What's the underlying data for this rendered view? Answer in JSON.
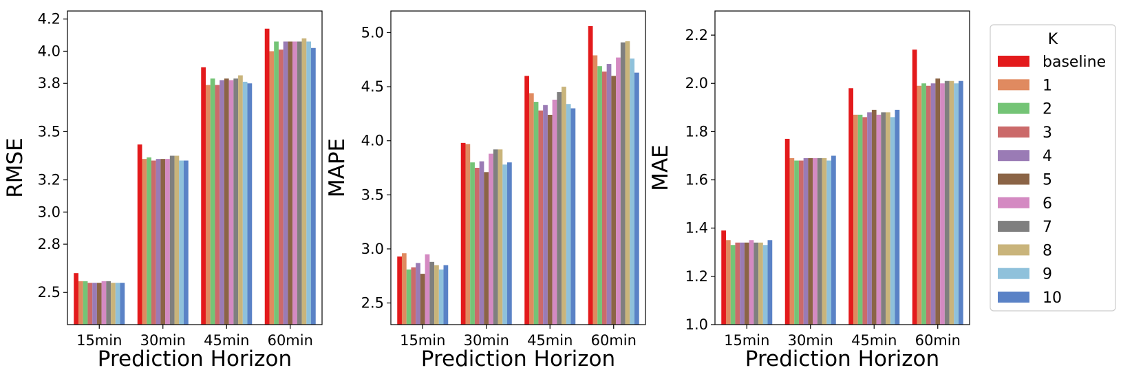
{
  "legend": {
    "title": "K",
    "entries": [
      "baseline",
      "1",
      "2",
      "3",
      "4",
      "5",
      "6",
      "7",
      "8",
      "9",
      "10"
    ],
    "colors": [
      "#e31a1c",
      "#e08a60",
      "#74c476",
      "#cb6a6a",
      "#9a7bb5",
      "#8b6446",
      "#d48ac2",
      "#7f7f7f",
      "#c9b47b",
      "#8fc1db",
      "#5a82c6"
    ],
    "placement": "right"
  },
  "chart_data": [
    {
      "type": "bar",
      "xlabel": "Prediction Horizon",
      "ylabel": "RMSE",
      "categories": [
        "15min",
        "30min",
        "45min",
        "60min"
      ],
      "ylim": [
        2.3,
        4.25
      ],
      "yticks": [
        2.5,
        2.8,
        3.0,
        3.2,
        3.5,
        3.8,
        4.0,
        4.2
      ],
      "ytick_labels": [
        "2.5",
        "2.8",
        "3.0",
        "3.2",
        "3.5",
        "3.8",
        "4.0",
        "4.2"
      ],
      "grid": false,
      "series": [
        {
          "name": "baseline",
          "values": [
            2.62,
            3.42,
            3.9,
            4.14
          ]
        },
        {
          "name": "1",
          "values": [
            2.57,
            3.33,
            3.79,
            4.0
          ]
        },
        {
          "name": "2",
          "values": [
            2.57,
            3.34,
            3.83,
            4.06
          ]
        },
        {
          "name": "3",
          "values": [
            2.56,
            3.32,
            3.79,
            4.01
          ]
        },
        {
          "name": "4",
          "values": [
            2.56,
            3.33,
            3.82,
            4.06
          ]
        },
        {
          "name": "5",
          "values": [
            2.56,
            3.33,
            3.83,
            4.06
          ]
        },
        {
          "name": "6",
          "values": [
            2.57,
            3.33,
            3.82,
            4.06
          ]
        },
        {
          "name": "7",
          "values": [
            2.57,
            3.35,
            3.83,
            4.06
          ]
        },
        {
          "name": "8",
          "values": [
            2.56,
            3.35,
            3.85,
            4.08
          ]
        },
        {
          "name": "9",
          "values": [
            2.56,
            3.32,
            3.81,
            4.06
          ]
        },
        {
          "name": "10",
          "values": [
            2.56,
            3.32,
            3.8,
            4.02
          ]
        }
      ]
    },
    {
      "type": "bar",
      "xlabel": "Prediction Horizon",
      "ylabel": "MAPE",
      "categories": [
        "15min",
        "30min",
        "45min",
        "60min"
      ],
      "ylim": [
        2.3,
        5.2
      ],
      "yticks": [
        2.5,
        3.0,
        3.5,
        4.0,
        4.5,
        5.0
      ],
      "ytick_labels": [
        "2.5",
        "3.0",
        "3.5",
        "4.0",
        "4.5",
        "5.0"
      ],
      "grid": false,
      "series": [
        {
          "name": "baseline",
          "values": [
            2.93,
            3.98,
            4.6,
            5.06
          ]
        },
        {
          "name": "1",
          "values": [
            2.96,
            3.97,
            4.44,
            4.79
          ]
        },
        {
          "name": "2",
          "values": [
            2.81,
            3.8,
            4.36,
            4.69
          ]
        },
        {
          "name": "3",
          "values": [
            2.83,
            3.75,
            4.28,
            4.64
          ]
        },
        {
          "name": "4",
          "values": [
            2.87,
            3.81,
            4.33,
            4.71
          ]
        },
        {
          "name": "5",
          "values": [
            2.77,
            3.71,
            4.24,
            4.6
          ]
        },
        {
          "name": "6",
          "values": [
            2.95,
            3.88,
            4.38,
            4.77
          ]
        },
        {
          "name": "7",
          "values": [
            2.88,
            3.92,
            4.45,
            4.91
          ]
        },
        {
          "name": "8",
          "values": [
            2.85,
            3.92,
            4.5,
            4.92
          ]
        },
        {
          "name": "9",
          "values": [
            2.81,
            3.78,
            4.34,
            4.76
          ]
        },
        {
          "name": "10",
          "values": [
            2.85,
            3.8,
            4.3,
            4.63
          ]
        }
      ]
    },
    {
      "type": "bar",
      "xlabel": "Prediction Horizon",
      "ylabel": "MAE",
      "categories": [
        "15min",
        "30min",
        "45min",
        "60min"
      ],
      "ylim": [
        1.0,
        2.3
      ],
      "yticks": [
        1.0,
        1.2,
        1.4,
        1.6,
        1.8,
        2.0,
        2.2
      ],
      "ytick_labels": [
        "1.0",
        "1.2",
        "1.4",
        "1.6",
        "1.8",
        "2.0",
        "2.2"
      ],
      "grid": false,
      "series": [
        {
          "name": "baseline",
          "values": [
            1.39,
            1.77,
            1.98,
            2.14
          ]
        },
        {
          "name": "1",
          "values": [
            1.35,
            1.69,
            1.87,
            1.99
          ]
        },
        {
          "name": "2",
          "values": [
            1.33,
            1.68,
            1.87,
            2.0
          ]
        },
        {
          "name": "3",
          "values": [
            1.34,
            1.68,
            1.86,
            1.99
          ]
        },
        {
          "name": "4",
          "values": [
            1.34,
            1.69,
            1.88,
            2.0
          ]
        },
        {
          "name": "5",
          "values": [
            1.34,
            1.69,
            1.89,
            2.02
          ]
        },
        {
          "name": "6",
          "values": [
            1.35,
            1.69,
            1.87,
            2.0
          ]
        },
        {
          "name": "7",
          "values": [
            1.34,
            1.69,
            1.88,
            2.01
          ]
        },
        {
          "name": "8",
          "values": [
            1.34,
            1.69,
            1.88,
            2.01
          ]
        },
        {
          "name": "9",
          "values": [
            1.33,
            1.68,
            1.86,
            2.0
          ]
        },
        {
          "name": "10",
          "values": [
            1.35,
            1.7,
            1.89,
            2.01
          ]
        }
      ]
    }
  ]
}
